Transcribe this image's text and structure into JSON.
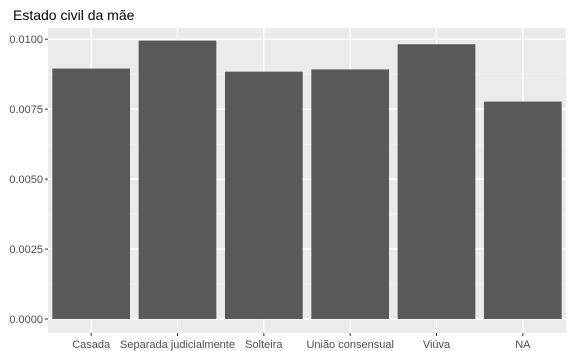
{
  "chart_data": {
    "type": "bar",
    "title": "Estado civil da mãe",
    "xlabel": "",
    "ylabel": "",
    "categories": [
      "Casada",
      "Separada judicialmente",
      "Solteira",
      "União consensual",
      "Viúva",
      "NA"
    ],
    "values": [
      0.00895,
      0.00995,
      0.00884,
      0.00892,
      0.00982,
      0.00777
    ],
    "y_ticks": [
      "0.0000",
      "0.0025",
      "0.0050",
      "0.0075",
      "0.0100"
    ],
    "ylim": [
      -0.0005,
      0.0104
    ],
    "grid": true,
    "legend": "none",
    "colors": {
      "bar": "#595959",
      "panel": "#ebebeb",
      "grid_major": "#ffffff",
      "grid_minor": "#f4f4f4"
    }
  }
}
